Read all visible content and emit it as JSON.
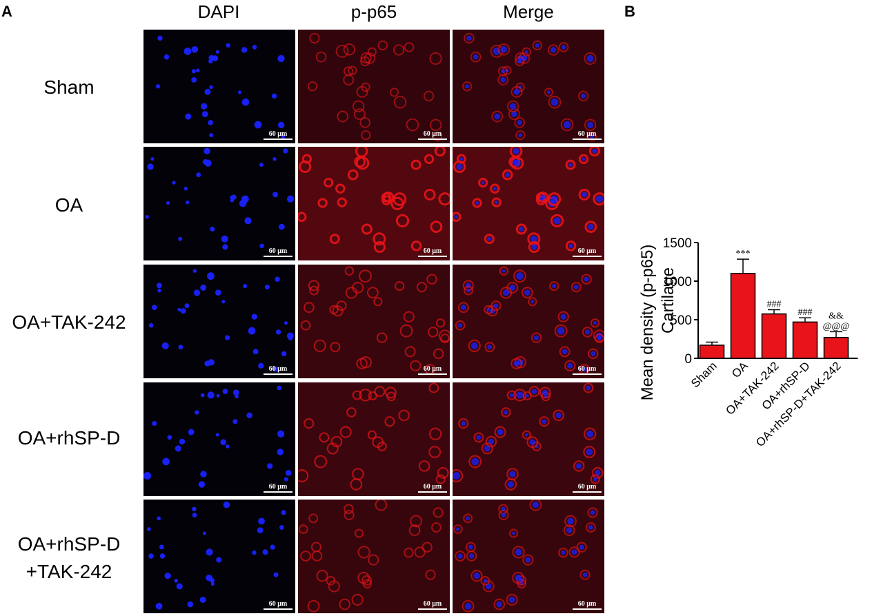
{
  "panel_labels": {
    "a": "A",
    "b": "B"
  },
  "columns": [
    "DAPI",
    "p-p65",
    "Merge"
  ],
  "rows": [
    {
      "label_lines": [
        "Sham"
      ]
    },
    {
      "label_lines": [
        "OA"
      ]
    },
    {
      "label_lines": [
        "OA+TAK-242"
      ]
    },
    {
      "label_lines": [
        "OA+rhSP-D"
      ]
    },
    {
      "label_lines": [
        "OA+rhSP-D",
        "+TAK-242"
      ]
    }
  ],
  "scalebar_label": "60 μm",
  "colors": {
    "dapi": "#1a22ff",
    "p65": "#e8141a",
    "bar": "#e8141a",
    "axis": "#000000"
  },
  "chart_data": {
    "type": "bar",
    "ylabel_lines": [
      "Mean density (p-p65)",
      "Cartilage"
    ],
    "categories": [
      "Sham",
      "OA",
      "OA+TAK-242",
      "OA+rhSP-D",
      "OA+rhSP-D+TAK-242"
    ],
    "values": [
      170,
      1100,
      575,
      470,
      270
    ],
    "errors": [
      40,
      185,
      55,
      55,
      75
    ],
    "annotations": [
      [],
      [
        "***"
      ],
      [
        "###"
      ],
      [
        "###"
      ],
      [
        "&&",
        "@@@"
      ]
    ],
    "ylim": [
      0,
      1500
    ],
    "yticks": [
      0,
      500,
      1000,
      1500
    ],
    "bar_color": "#e8141a"
  }
}
